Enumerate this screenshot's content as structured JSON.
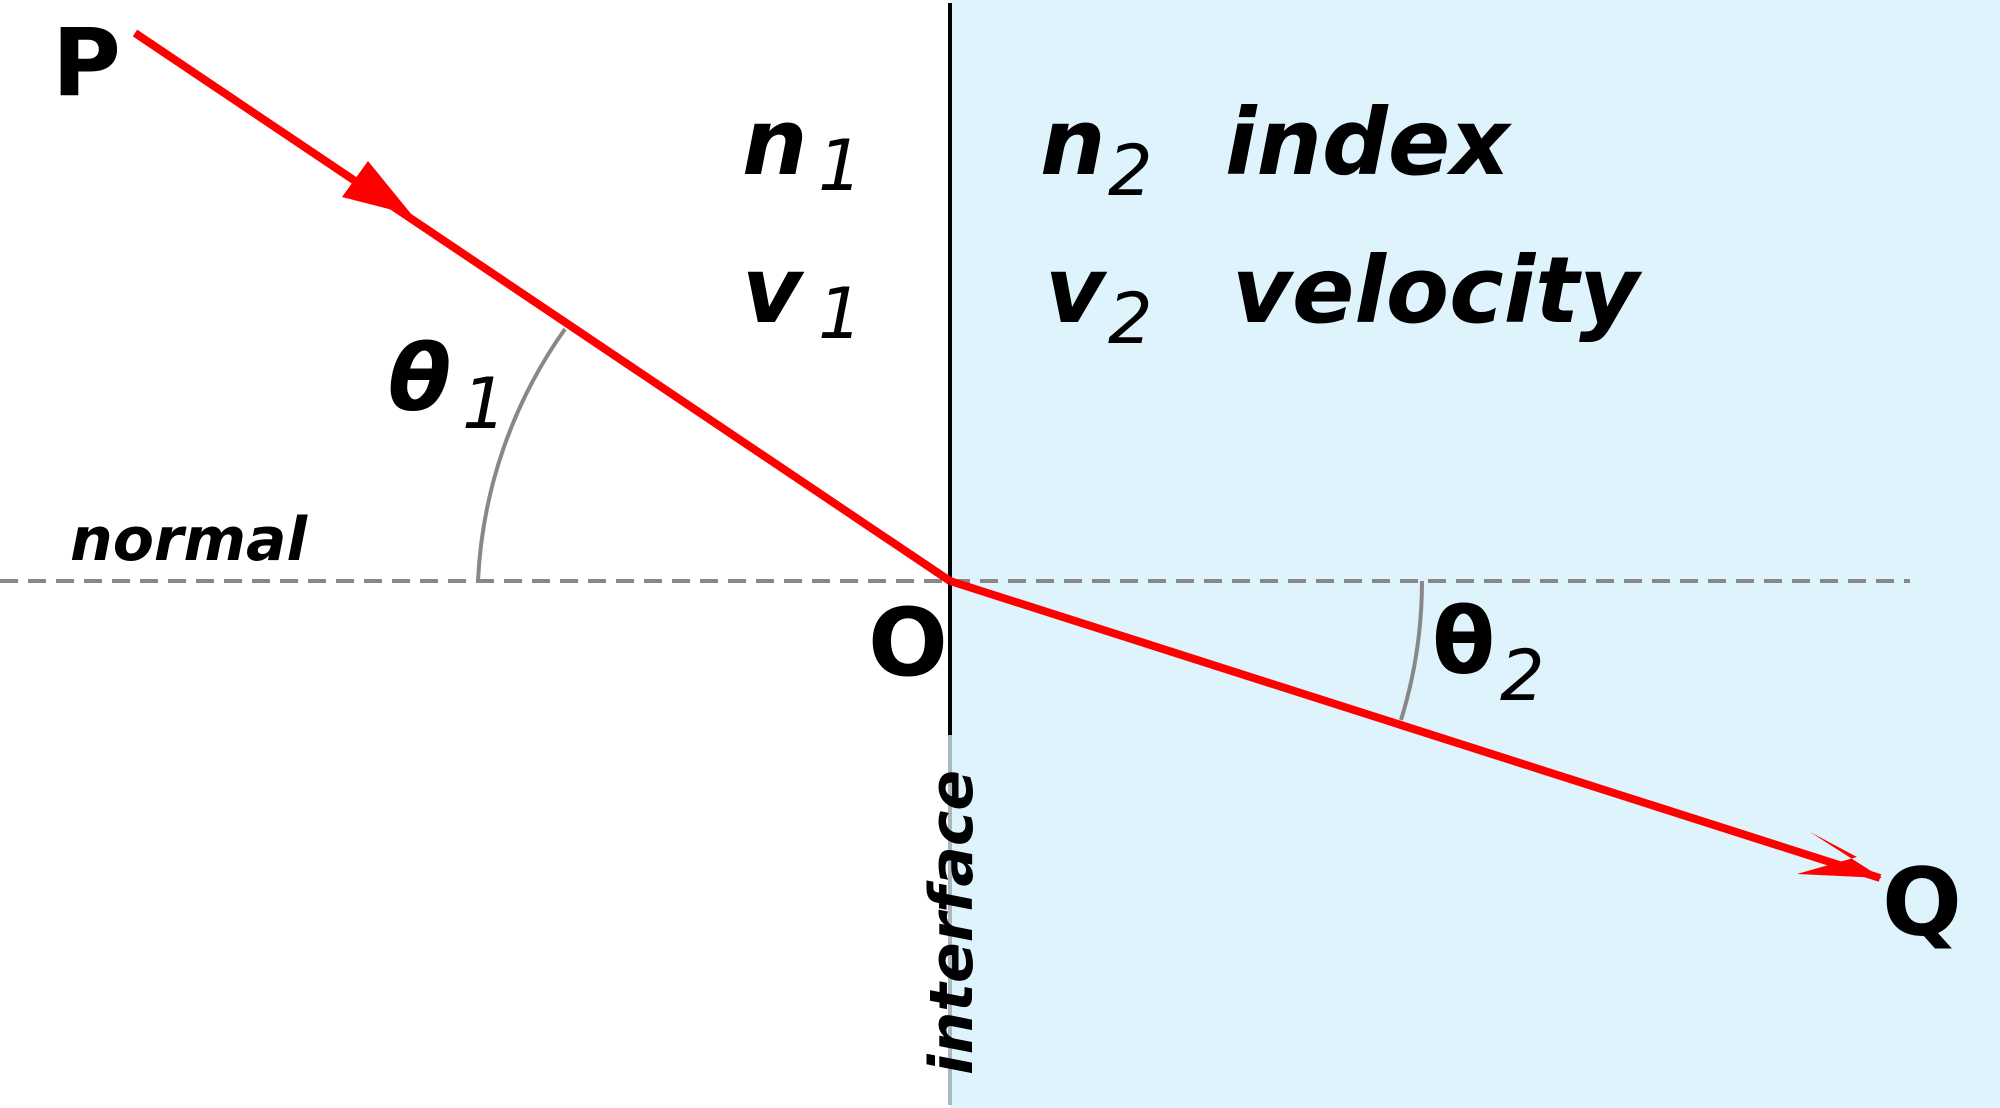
{
  "points": {
    "p": "P",
    "o": "O",
    "q": "Q"
  },
  "medium1": {
    "n_symbol": "n",
    "n_sub": "1",
    "v_symbol": "v",
    "v_sub": "1"
  },
  "medium2": {
    "n_symbol": "n",
    "n_sub": "2",
    "v_symbol": "v",
    "v_sub": "2"
  },
  "labels": {
    "index": "index",
    "velocity": "velocity",
    "normal": "normal",
    "interface": "interface"
  },
  "angles": {
    "theta1_symbol": "θ",
    "theta1_sub": "1",
    "theta2_symbol": "θ",
    "theta2_sub": "2"
  },
  "colors": {
    "ray": "#ff0000",
    "medium2_fill": "#dff3fc",
    "normal_line": "#888888",
    "angle_arc": "#888888",
    "interface_line": "#000000"
  }
}
